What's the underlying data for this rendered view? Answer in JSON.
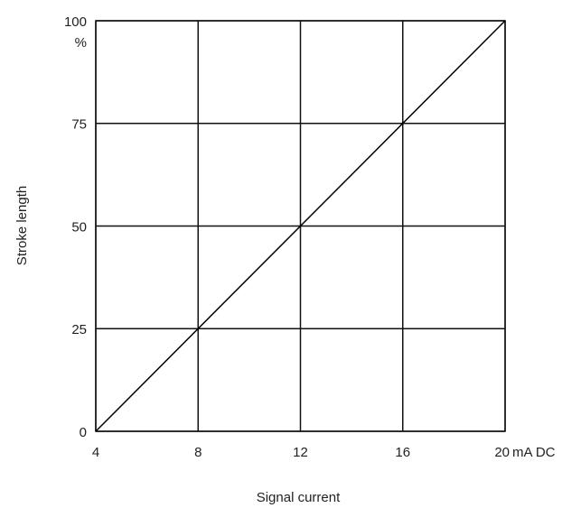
{
  "chart_data": {
    "type": "line",
    "x_label": "Signal current",
    "y_label": "Stroke length",
    "x_unit": "mA DC",
    "y_unit": "%",
    "x": [
      4,
      20
    ],
    "series": [
      {
        "color": "#000000",
        "values": [
          0,
          100
        ]
      }
    ],
    "xlim": [
      4,
      20
    ],
    "xticks": [
      4,
      8,
      12,
      16,
      20
    ],
    "ylim": [
      0,
      100
    ],
    "yticks": [
      0,
      25,
      50,
      75,
      100
    ],
    "grid": true
  }
}
